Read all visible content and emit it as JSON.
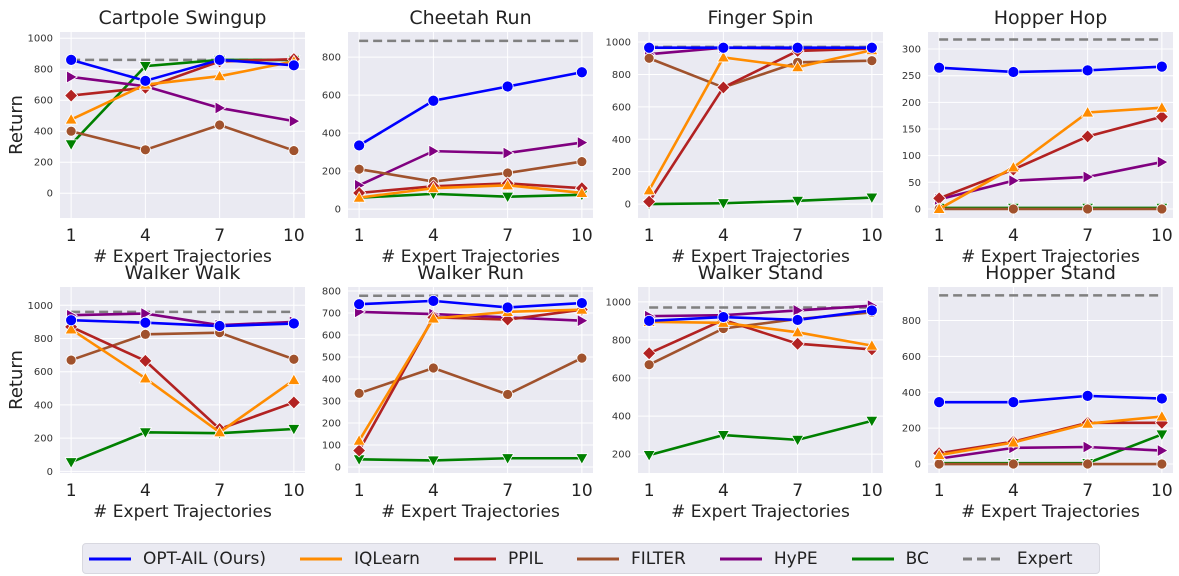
{
  "chart_data": [
    {
      "type": "line",
      "title": "Cartpole Swingup",
      "xlabel": "# Expert Trajectories",
      "ylabel": "Return",
      "x": [
        1,
        4,
        7,
        10
      ],
      "ylim": [
        -160,
        1040
      ],
      "yticks": [
        0,
        200,
        400,
        600,
        800,
        1000
      ],
      "grid": true,
      "series": [
        {
          "name": "OPT-AIL (Ours)",
          "values": [
            860,
            725,
            860,
            825
          ]
        },
        {
          "name": "IQLearn",
          "values": [
            475,
            700,
            755,
            850
          ]
        },
        {
          "name": "PPIL",
          "values": [
            630,
            680,
            850,
            865
          ]
        },
        {
          "name": "FILTER",
          "values": [
            400,
            280,
            440,
            275
          ]
        },
        {
          "name": "HyPE",
          "values": [
            750,
            690,
            550,
            465
          ]
        },
        {
          "name": "BC",
          "values": [
            315,
            820,
            860,
            860
          ]
        },
        {
          "name": "Expert",
          "values": [
            860,
            860,
            860,
            860
          ]
        }
      ]
    },
    {
      "type": "line",
      "title": "Cheetah Run",
      "xlabel": "# Expert Trajectories",
      "ylabel": "",
      "x": [
        1,
        4,
        7,
        10
      ],
      "ylim": [
        -47,
        932
      ],
      "yticks": [
        0,
        200,
        400,
        600,
        800
      ],
      "grid": true,
      "series": [
        {
          "name": "OPT-AIL (Ours)",
          "values": [
            335,
            570,
            645,
            720
          ]
        },
        {
          "name": "IQLearn",
          "values": [
            60,
            110,
            125,
            85
          ]
        },
        {
          "name": "PPIL",
          "values": [
            85,
            120,
            135,
            110
          ]
        },
        {
          "name": "FILTER",
          "values": [
            210,
            145,
            190,
            250
          ]
        },
        {
          "name": "HyPE",
          "values": [
            125,
            305,
            295,
            350
          ]
        },
        {
          "name": "BC",
          "values": [
            60,
            80,
            65,
            75
          ]
        },
        {
          "name": "Expert",
          "values": [
            885,
            885,
            885,
            885
          ]
        }
      ]
    },
    {
      "type": "line",
      "title": "Finger Spin",
      "xlabel": "# Expert Trajectories",
      "ylabel": "",
      "x": [
        1,
        4,
        7,
        10
      ],
      "ylim": [
        -86,
        1062
      ],
      "yticks": [
        0,
        200,
        400,
        600,
        800,
        1000
      ],
      "grid": true,
      "series": [
        {
          "name": "OPT-AIL (Ours)",
          "values": [
            965,
            965,
            965,
            965
          ]
        },
        {
          "name": "IQLearn",
          "values": [
            85,
            905,
            845,
            950
          ]
        },
        {
          "name": "PPIL",
          "values": [
            15,
            720,
            945,
            960
          ]
        },
        {
          "name": "FILTER",
          "values": [
            900,
            720,
            875,
            885
          ]
        },
        {
          "name": "HyPE",
          "values": [
            925,
            965,
            960,
            960
          ]
        },
        {
          "name": "BC",
          "values": [
            0,
            5,
            20,
            40
          ]
        },
        {
          "name": "Expert",
          "values": [
            970,
            970,
            970,
            970
          ]
        }
      ]
    },
    {
      "type": "line",
      "title": "Hopper Hop",
      "xlabel": "# Expert Trajectories",
      "ylabel": "",
      "x": [
        1,
        4,
        7,
        10
      ],
      "ylim": [
        -17,
        332
      ],
      "yticks": [
        0,
        50,
        100,
        150,
        200,
        250,
        300
      ],
      "grid": true,
      "series": [
        {
          "name": "OPT-AIL (Ours)",
          "values": [
            265,
            257,
            260,
            267
          ]
        },
        {
          "name": "IQLearn",
          "values": [
            0,
            78,
            181,
            190
          ]
        },
        {
          "name": "PPIL",
          "values": [
            20,
            74,
            136,
            173
          ]
        },
        {
          "name": "FILTER",
          "values": [
            0,
            0,
            0,
            0
          ]
        },
        {
          "name": "HyPE",
          "values": [
            18,
            53,
            60,
            88
          ]
        },
        {
          "name": "BC",
          "values": [
            2,
            2,
            2,
            2
          ]
        },
        {
          "name": "Expert",
          "values": [
            318,
            318,
            318,
            318
          ]
        }
      ]
    },
    {
      "type": "line",
      "title": "Walker Walk",
      "xlabel": "# Expert Trajectories",
      "ylabel": "Return",
      "x": [
        1,
        4,
        7,
        10
      ],
      "ylim": [
        -10,
        1110
      ],
      "yticks": [
        0,
        200,
        400,
        600,
        800,
        1000
      ],
      "grid": true,
      "series": [
        {
          "name": "OPT-AIL (Ours)",
          "values": [
            910,
            895,
            875,
            890
          ]
        },
        {
          "name": "IQLearn",
          "values": [
            855,
            560,
            235,
            550
          ]
        },
        {
          "name": "PPIL",
          "values": [
            870,
            665,
            255,
            415
          ]
        },
        {
          "name": "FILTER",
          "values": [
            670,
            825,
            835,
            675
          ]
        },
        {
          "name": "HyPE",
          "values": [
            940,
            950,
            880,
            900
          ]
        },
        {
          "name": "BC",
          "values": [
            55,
            235,
            230,
            255
          ]
        },
        {
          "name": "Expert",
          "values": [
            960,
            960,
            960,
            960
          ]
        }
      ]
    },
    {
      "type": "line",
      "title": "Walker Run",
      "xlabel": "# Expert Trajectories",
      "ylabel": "",
      "x": [
        1,
        4,
        7,
        10
      ],
      "ylim": [
        -27,
        818
      ],
      "yticks": [
        0,
        100,
        200,
        300,
        400,
        500,
        600,
        700,
        800
      ],
      "grid": true,
      "series": [
        {
          "name": "OPT-AIL (Ours)",
          "values": [
            740,
            755,
            725,
            745
          ]
        },
        {
          "name": "IQLearn",
          "values": [
            120,
            675,
            705,
            715
          ]
        },
        {
          "name": "PPIL",
          "values": [
            75,
            680,
            670,
            715
          ]
        },
        {
          "name": "FILTER",
          "values": [
            335,
            450,
            330,
            495
          ]
        },
        {
          "name": "HyPE",
          "values": [
            705,
            695,
            680,
            665
          ]
        },
        {
          "name": "BC",
          "values": [
            35,
            30,
            40,
            40
          ]
        },
        {
          "name": "Expert",
          "values": [
            778,
            778,
            778,
            778
          ]
        }
      ]
    },
    {
      "type": "line",
      "title": "Walker Stand",
      "xlabel": "# Expert Trajectories",
      "ylabel": "",
      "x": [
        1,
        4,
        7,
        10
      ],
      "ylim": [
        101,
        1078
      ],
      "yticks": [
        200,
        400,
        600,
        800,
        1000
      ],
      "grid": true,
      "series": [
        {
          "name": "OPT-AIL (Ours)",
          "values": [
            900,
            920,
            905,
            955
          ]
        },
        {
          "name": "IQLearn",
          "values": [
            895,
            890,
            840,
            770
          ]
        },
        {
          "name": "PPIL",
          "values": [
            730,
            905,
            780,
            750
          ]
        },
        {
          "name": "FILTER",
          "values": [
            670,
            860,
            910,
            945
          ]
        },
        {
          "name": "HyPE",
          "values": [
            925,
            930,
            955,
            980
          ]
        },
        {
          "name": "BC",
          "values": [
            195,
            300,
            275,
            375
          ]
        },
        {
          "name": "Expert",
          "values": [
            970,
            970,
            970,
            970
          ]
        }
      ]
    },
    {
      "type": "line",
      "title": "Hopper Stand",
      "xlabel": "# Expert Trajectories",
      "ylabel": "",
      "x": [
        1,
        4,
        7,
        10
      ],
      "ylim": [
        -50,
        987
      ],
      "yticks": [
        0,
        200,
        400,
        600,
        800
      ],
      "grid": true,
      "series": [
        {
          "name": "OPT-AIL (Ours)",
          "values": [
            345,
            345,
            380,
            365
          ]
        },
        {
          "name": "IQLearn",
          "values": [
            50,
            120,
            225,
            265
          ]
        },
        {
          "name": "PPIL",
          "values": [
            60,
            125,
            230,
            230
          ]
        },
        {
          "name": "FILTER",
          "values": [
            0,
            0,
            0,
            0
          ]
        },
        {
          "name": "HyPE",
          "values": [
            30,
            90,
            95,
            75
          ]
        },
        {
          "name": "BC",
          "values": [
            5,
            5,
            5,
            165
          ]
        },
        {
          "name": "Expert",
          "values": [
            940,
            940,
            940,
            940
          ]
        }
      ]
    }
  ],
  "series_styles": [
    {
      "name": "OPT-AIL (Ours)",
      "color": "#0000ff",
      "marker": "circle",
      "dash": false
    },
    {
      "name": "IQLearn",
      "color": "#ff8c00",
      "marker": "triangle-up",
      "dash": false
    },
    {
      "name": "PPIL",
      "color": "#b22222",
      "marker": "diamond",
      "dash": false
    },
    {
      "name": "FILTER",
      "color": "#a0522d",
      "marker": "circle",
      "dash": false
    },
    {
      "name": "HyPE",
      "color": "#800080",
      "marker": "triangle-right",
      "dash": false
    },
    {
      "name": "BC",
      "color": "#008000",
      "marker": "triangle-down",
      "dash": false
    },
    {
      "name": "Expert",
      "color": "#808080",
      "marker": "none",
      "dash": true
    }
  ],
  "legend": {
    "placement": "bottom-center",
    "items": [
      "OPT-AIL (Ours)",
      "IQLearn",
      "PPIL",
      "FILTER",
      "HyPE",
      "BC",
      "Expert"
    ]
  },
  "colors": {
    "plot_background": "#eaeaf2",
    "grid": "#ffffff"
  }
}
